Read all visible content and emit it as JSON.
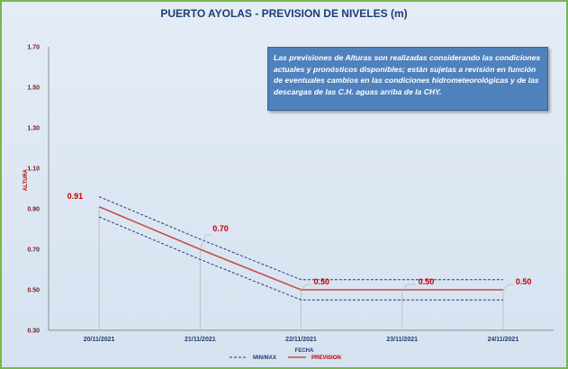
{
  "title": "PUERTO AYOLAS - PREVISION DE NIVELES (m)",
  "note": "Las previsiones de Alturas son realizadas considerando las condiciones actuales y pronósticos disponibles;  están sujetas a revisión en función de eventuales cambios en las condiciones hidrometeorológicas y de las descargas de las C.H. aguas arriba de la CHY.",
  "colors": {
    "prevision": "#c0504d",
    "minmax": "#1f3c73",
    "frame": "#76b84a",
    "note_bg": "#4f81bd"
  },
  "chart_data": {
    "type": "line",
    "xlabel": "FECHA",
    "ylabel": "ALTURA",
    "ylim": [
      0.3,
      1.7
    ],
    "yticks": [
      "0.30",
      "0.50",
      "0.70",
      "0.90",
      "1.10",
      "1.30",
      "1.50",
      "1.70"
    ],
    "categories": [
      "20/11/2021",
      "21/11/2021",
      "22/11/2021",
      "23/11/2021",
      "24/11/2021"
    ],
    "series": [
      {
        "name": "PREVISION",
        "values": [
          0.91,
          0.7,
          0.5,
          0.5,
          0.5
        ],
        "labels": [
          "0.91",
          "0.70",
          "0.50",
          "0.50",
          "0.50"
        ]
      },
      {
        "name": "MIN/MAX",
        "values": [
          0.96,
          0.75,
          0.55,
          0.55,
          0.55
        ]
      },
      {
        "name": "",
        "values": [
          0.86,
          0.65,
          0.45,
          0.45,
          0.45
        ]
      }
    ],
    "legend": [
      "MIN/MAX",
      "PREVISION"
    ],
    "legend_position": "bottom",
    "grid": false
  }
}
